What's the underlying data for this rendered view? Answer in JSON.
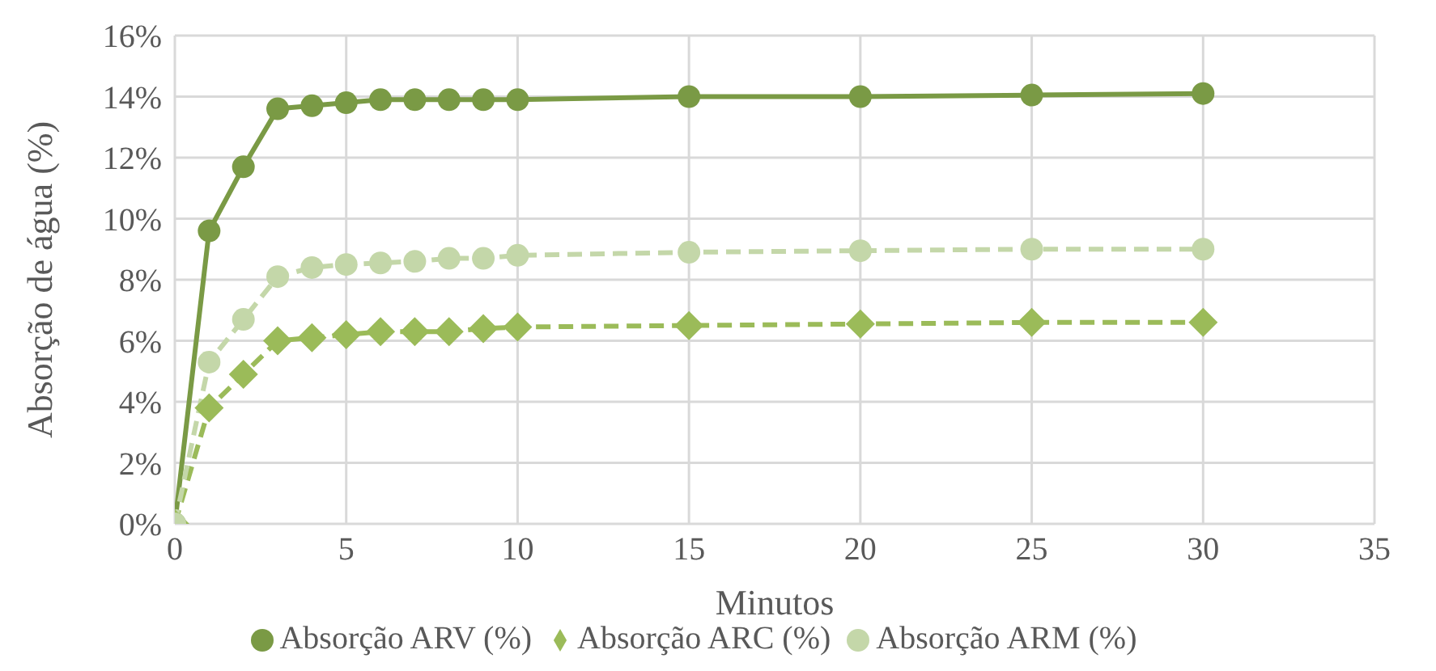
{
  "chart_data": {
    "type": "line",
    "xlabel": "Minutos",
    "ylabel": "Absorção de água (%)",
    "x": [
      0,
      1,
      2,
      3,
      4,
      5,
      6,
      7,
      8,
      9,
      10,
      15,
      20,
      25,
      30
    ],
    "series": [
      {
        "name": "Absorção ARV (%)",
        "color": "#7a9a45",
        "marker": "circle",
        "line_style": "solid",
        "values": [
          0,
          9.6,
          11.7,
          13.6,
          13.7,
          13.8,
          13.9,
          13.9,
          13.9,
          13.9,
          13.9,
          14.0,
          14.0,
          14.05,
          14.1
        ]
      },
      {
        "name": "Absorção ARC (%)",
        "color": "#9bbb59",
        "marker": "diamond",
        "line_style": "dashed",
        "values": [
          0,
          3.8,
          4.9,
          6.0,
          6.1,
          6.2,
          6.3,
          6.3,
          6.3,
          6.4,
          6.45,
          6.5,
          6.55,
          6.6,
          6.6
        ]
      },
      {
        "name": "Absorção ARM (%)",
        "color": "#c4d7a9",
        "marker": "circle",
        "line_style": "dashed",
        "values": [
          0,
          5.3,
          6.7,
          8.1,
          8.4,
          8.5,
          8.55,
          8.6,
          8.7,
          8.7,
          8.8,
          8.9,
          8.95,
          9.0,
          9.0
        ]
      }
    ],
    "xlim": [
      0,
      35
    ],
    "xticks": [
      0,
      5,
      10,
      15,
      20,
      25,
      30,
      35
    ],
    "ylim": [
      0,
      16
    ],
    "yticks": [
      {
        "value": 0,
        "label": "0%"
      },
      {
        "value": 2,
        "label": "2%"
      },
      {
        "value": 4,
        "label": "4%"
      },
      {
        "value": 6,
        "label": "6%"
      },
      {
        "value": 8,
        "label": "8%"
      },
      {
        "value": 10,
        "label": "10%"
      },
      {
        "value": 12,
        "label": "12%"
      },
      {
        "value": 14,
        "label": "14%"
      },
      {
        "value": 16,
        "label": "16%"
      }
    ],
    "grid": true,
    "legend": "bottom"
  }
}
